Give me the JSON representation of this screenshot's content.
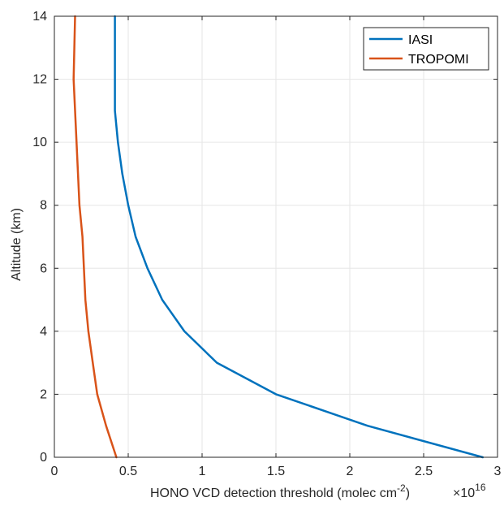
{
  "chart_data": {
    "type": "line",
    "xlabel_main": "HONO VCD detection threshold (molec cm",
    "xlabel_sup": "-2",
    "xlabel_close": ")",
    "x_multiplier_base": "×10",
    "x_multiplier_exp": "16",
    "ylabel": "Altitude (km)",
    "xlim": [
      0,
      3
    ],
    "ylim": [
      0,
      14
    ],
    "x_ticks": [
      0,
      0.5,
      1,
      1.5,
      2,
      2.5,
      3
    ],
    "x_tick_labels": [
      "0",
      "0.5",
      "1",
      "1.5",
      "2",
      "2.5",
      "3"
    ],
    "y_ticks": [
      0,
      2,
      4,
      6,
      8,
      10,
      12,
      14
    ],
    "y_tick_labels": [
      "0",
      "2",
      "4",
      "6",
      "8",
      "10",
      "12",
      "14"
    ],
    "grid": true,
    "legend_position": "top-right",
    "series": [
      {
        "name": "IASI",
        "color": "#0072BD",
        "x": [
          2.9,
          2.12,
          1.5,
          1.1,
          0.88,
          0.73,
          0.63,
          0.55,
          0.5,
          0.46,
          0.43,
          0.41,
          0.41,
          0.41,
          0.41
        ],
        "y": [
          0,
          1,
          2,
          3,
          4,
          5,
          6,
          7,
          8,
          9,
          10,
          11,
          12,
          13,
          14
        ]
      },
      {
        "name": "TROPOMI",
        "color": "#D95319",
        "x": [
          0.42,
          0.35,
          0.29,
          0.26,
          0.23,
          0.21,
          0.2,
          0.19,
          0.17,
          0.16,
          0.15,
          0.14,
          0.13,
          0.135,
          0.14
        ],
        "y": [
          0,
          1,
          2,
          3,
          4,
          5,
          6,
          7,
          8,
          9,
          10,
          11,
          12,
          13,
          14
        ]
      }
    ]
  }
}
